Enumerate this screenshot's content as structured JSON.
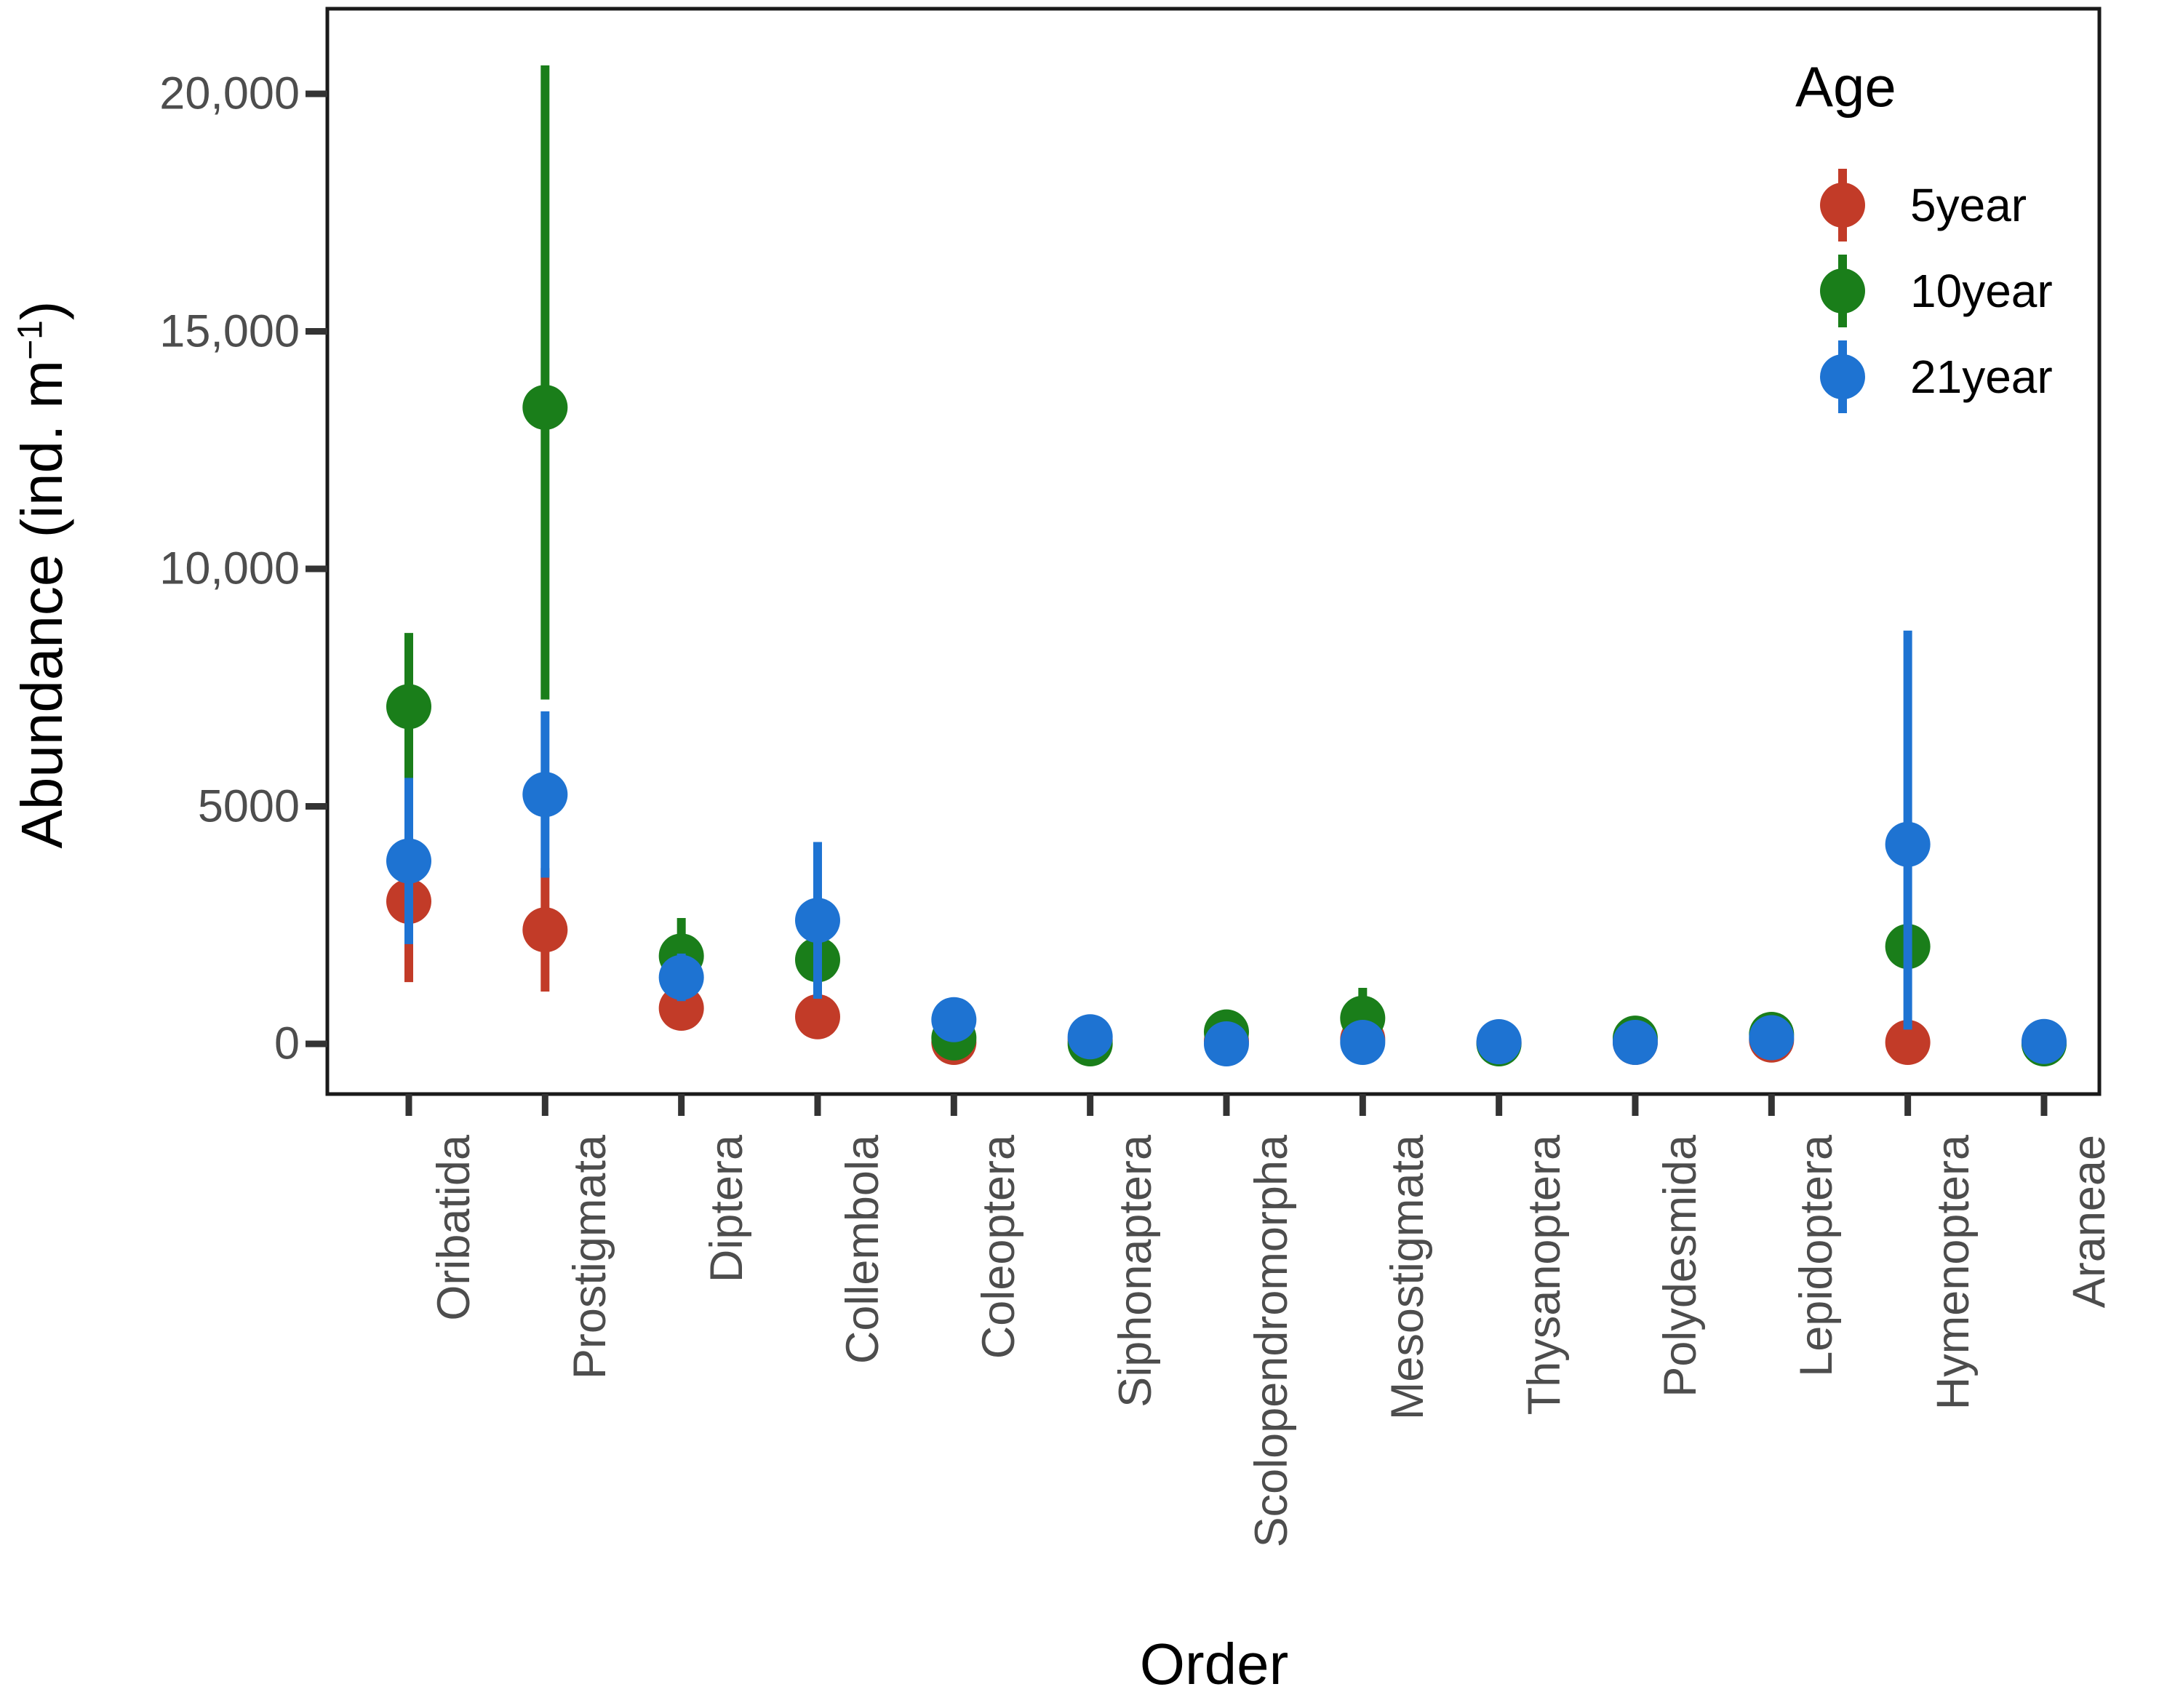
{
  "figure": {
    "background": "#ffffff"
  },
  "axes": {
    "y_title_main": "Abundance (ind. m",
    "y_title_sup": "−1",
    "y_title_close": ")",
    "x_title": "Order",
    "tick_color": "#4d4d4d",
    "axis_line_color": "#1a1a1a"
  },
  "legend": {
    "title": "Age",
    "position": "top-right-inside",
    "items": [
      {
        "label": "5year",
        "color": "#c23b28"
      },
      {
        "label": "10year",
        "color": "#1a7e1a"
      },
      {
        "label": "21year",
        "color": "#1e73d2"
      }
    ]
  },
  "chart_data": {
    "type": "scatter",
    "subtype": "pointrange-with-error-bars",
    "title": "",
    "xlabel": "Order",
    "ylabel": "Abundance (ind. m^-1)",
    "ylim": [
      -1000,
      21500
    ],
    "grid": false,
    "legend_position": "top-right-inside",
    "y_ticks": [
      {
        "value": 0,
        "label": "0"
      },
      {
        "value": 5000,
        "label": "5000"
      },
      {
        "value": 10000,
        "label": "10,000"
      },
      {
        "value": 15000,
        "label": "15,000"
      },
      {
        "value": 20000,
        "label": "20,000"
      }
    ],
    "categories": [
      "Oribatida",
      "Prostigmata",
      "Diptera",
      "Collembola",
      "Coleoptera",
      "Siphonaptera",
      "Scolopendromorpha",
      "Mesostigmata",
      "Thysanoptera",
      "Polydesmida",
      "Lepidoptera",
      "Hymenoptera",
      "Araneae"
    ],
    "series": [
      {
        "name": "5year",
        "color": "#c23b28",
        "values": [
          3000,
          2400,
          750,
          570,
          30,
          80,
          60,
          100,
          20,
          30,
          80,
          30,
          20
        ],
        "lower": [
          1300,
          1100,
          350,
          120,
          -70,
          -20,
          -40,
          -30,
          -60,
          -60,
          -40,
          -60,
          -60
        ],
        "upper": [
          4700,
          3700,
          1150,
          1020,
          130,
          180,
          160,
          230,
          100,
          120,
          200,
          120,
          100
        ]
      },
      {
        "name": "10year",
        "color": "#1a7e1a",
        "values": [
          7100,
          13400,
          1850,
          1770,
          125,
          0,
          250,
          540,
          0,
          120,
          200,
          2050,
          0
        ],
        "lower": [
          5550,
          7250,
          1050,
          1075,
          25,
          -80,
          50,
          -100,
          -80,
          20,
          50,
          1600,
          -80
        ],
        "upper": [
          8650,
          20600,
          2650,
          2465,
          225,
          80,
          450,
          1180,
          80,
          220,
          350,
          2500,
          80
        ]
      },
      {
        "name": "21year",
        "color": "#1e73d2",
        "values": [
          3850,
          5250,
          1400,
          2600,
          510,
          150,
          0,
          30,
          45,
          30,
          130,
          4200,
          50
        ],
        "lower": [
          2100,
          3500,
          900,
          950,
          390,
          30,
          -80,
          -80,
          -50,
          -60,
          0,
          300,
          -50
        ],
        "upper": [
          5600,
          7000,
          1900,
          4250,
          630,
          270,
          80,
          140,
          140,
          120,
          260,
          8700,
          150
        ]
      }
    ]
  }
}
